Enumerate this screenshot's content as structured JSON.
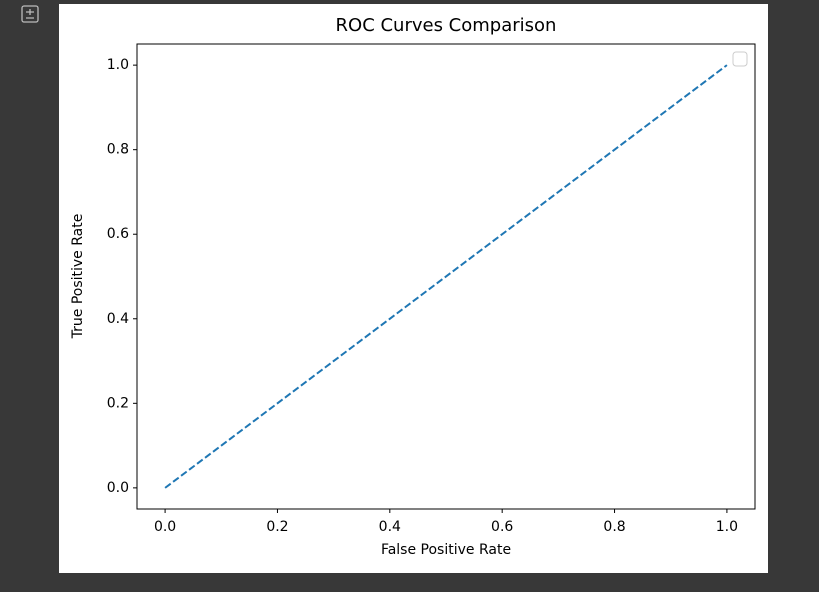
{
  "chart_data": {
    "type": "line",
    "title": "ROC Curves Comparison",
    "x_label": "False Positive Rate",
    "y_label": "True Positive Rate",
    "x": [
      0,
      1
    ],
    "series": [
      {
        "color": "#1f77b4",
        "linestyle": "dashed",
        "values": [
          0,
          1
        ]
      }
    ],
    "xlim": [
      -0.05,
      1.05
    ],
    "ylim": [
      -0.05,
      1.05
    ],
    "xticks": [
      {
        "value": 0,
        "label": "0.0"
      },
      0.2,
      0.4,
      0.6,
      0.8,
      {
        "value": 1,
        "label": "1.0"
      }
    ],
    "yticks": [
      {
        "value": 0,
        "label": "0.0"
      },
      0.2,
      0.4,
      0.6,
      0.8,
      {
        "value": 1,
        "label": "1.0"
      }
    ],
    "legend": "upper right",
    "grid": false
  }
}
